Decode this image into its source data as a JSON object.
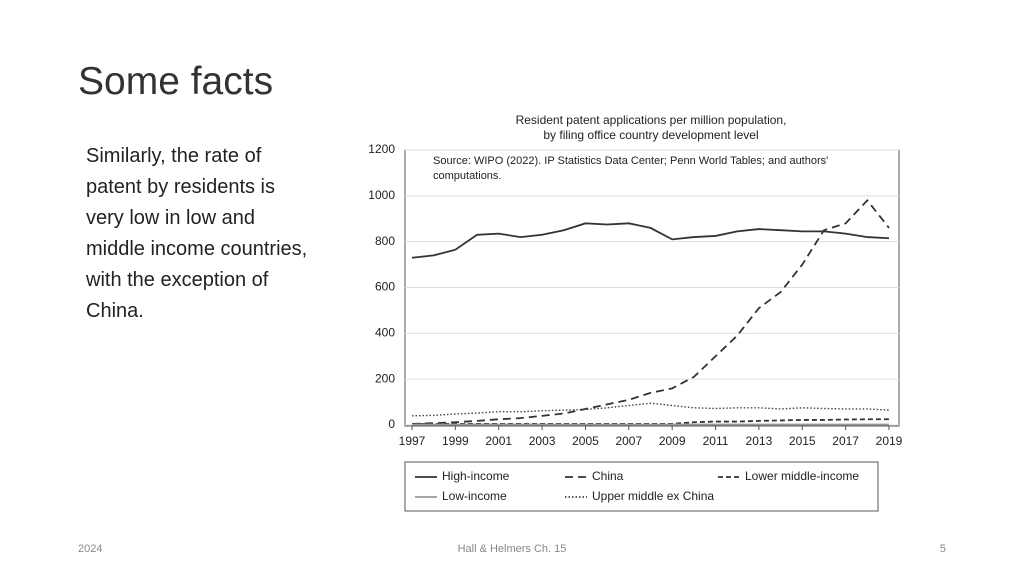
{
  "slide": {
    "heading": "Some facts",
    "body": "Similarly, the rate of patent by residents is very low in low and middle income countries, with the exception of China.",
    "footer_left": "2024",
    "footer_center": "Hall & Helmers Ch. 15",
    "footer_right": "5"
  },
  "chart_data": {
    "type": "line",
    "title": "Resident patent applications per million population,",
    "subtitle": "by filing office country development level",
    "source": "Source: WIPO (2022). IP Statistics Data Center; Penn World Tables; and authors' computations.",
    "x": [
      1997,
      1998,
      1999,
      2000,
      2001,
      2002,
      2003,
      2004,
      2005,
      2006,
      2007,
      2008,
      2009,
      2010,
      2011,
      2012,
      2013,
      2014,
      2015,
      2016,
      2017,
      2018,
      2019
    ],
    "xlim": [
      1997,
      2019
    ],
    "xticks": [
      1997,
      1999,
      2001,
      2003,
      2005,
      2007,
      2009,
      2011,
      2013,
      2015,
      2017,
      2019
    ],
    "ylim": [
      0,
      1200
    ],
    "yticks": [
      0,
      200,
      400,
      600,
      800,
      1000,
      1200
    ],
    "grid": true,
    "legend": "bottom",
    "series": [
      {
        "name": "High-income",
        "color": "#333333",
        "style": "solid",
        "values": [
          730,
          740,
          765,
          830,
          835,
          820,
          830,
          850,
          880,
          875,
          880,
          860,
          810,
          820,
          825,
          845,
          855,
          850,
          845,
          845,
          835,
          820,
          815
        ]
      },
      {
        "name": "China",
        "color": "#333333",
        "style": "dashed",
        "values": [
          5,
          8,
          12,
          18,
          25,
          30,
          40,
          50,
          70,
          90,
          110,
          140,
          160,
          210,
          300,
          390,
          510,
          580,
          700,
          850,
          880,
          980,
          860
        ]
      },
      {
        "name": "Lower middle-income",
        "color": "#333333",
        "style": "short-dashed",
        "values": [
          5,
          5,
          5,
          5,
          5,
          5,
          5,
          5,
          5,
          5,
          5,
          5,
          5,
          12,
          15,
          15,
          18,
          20,
          22,
          22,
          24,
          25,
          25
        ]
      },
      {
        "name": "Low-income",
        "color": "#999999",
        "style": "solid",
        "values": [
          2,
          2,
          2,
          2,
          2,
          2,
          2,
          2,
          2,
          2,
          2,
          2,
          2,
          2,
          2,
          2,
          2,
          2,
          2,
          2,
          2,
          2,
          2
        ]
      },
      {
        "name": "Upper middle ex China",
        "color": "#444444",
        "style": "dotted",
        "values": [
          40,
          42,
          48,
          52,
          58,
          58,
          62,
          65,
          68,
          75,
          85,
          95,
          85,
          75,
          72,
          75,
          75,
          70,
          75,
          72,
          70,
          70,
          65
        ]
      }
    ]
  }
}
